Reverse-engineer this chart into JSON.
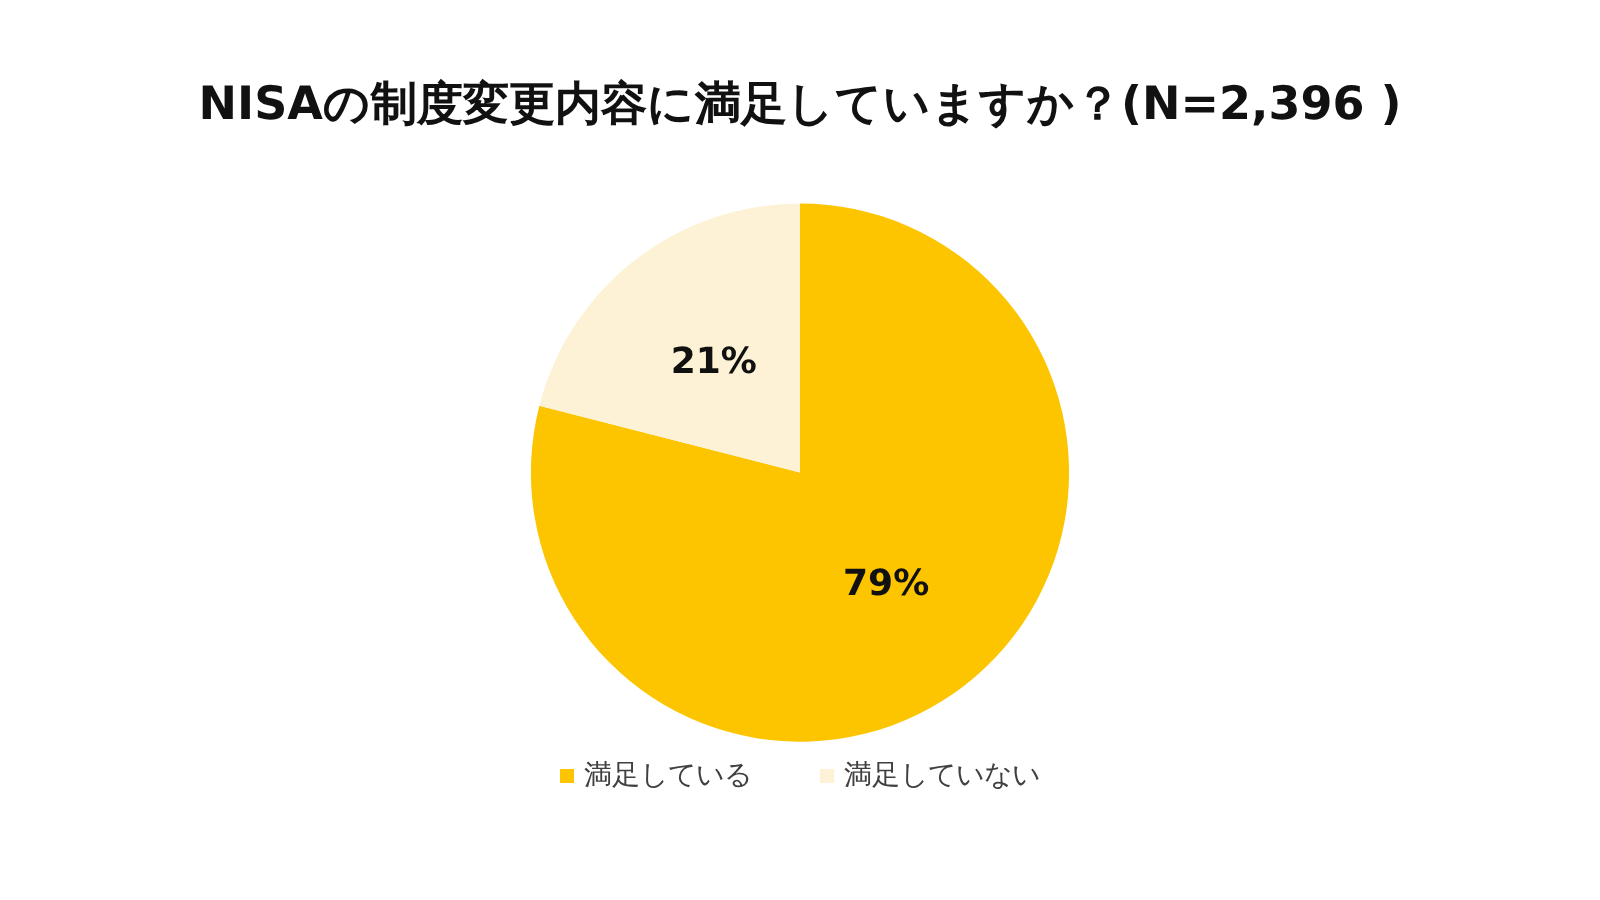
{
  "chart_data": {
    "type": "pie",
    "title": "NISAの制度変更内容に満足していますか？(N=2,396 )",
    "categories": [
      "満足している",
      "満足していない"
    ],
    "values": [
      79,
      21
    ],
    "colors": [
      "#fcc500",
      "#fdf2d6"
    ],
    "value_labels": [
      "79%",
      "21%"
    ],
    "legend": "bottom"
  }
}
